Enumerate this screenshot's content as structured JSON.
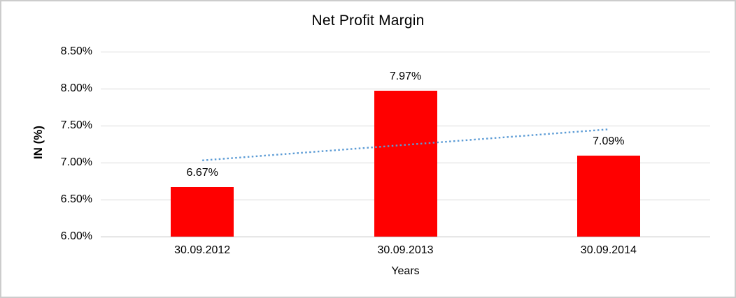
{
  "window": {
    "background": "#FFFFFF",
    "border_color": "#CCCCCC"
  },
  "chart_data": {
    "type": "bar",
    "title": "Net Profit Margin",
    "xlabel": "Years",
    "ylabel": "IN (%)",
    "categories": [
      "30.09.2012",
      "30.09.2013",
      "30.09.2014"
    ],
    "series": [
      {
        "name": "Net Profit Margin",
        "values": [
          6.67,
          7.97,
          7.09
        ],
        "data_labels": [
          "6.67%",
          "7.97%",
          "7.09%"
        ],
        "color": "#FF0000"
      }
    ],
    "ylim": [
      6.0,
      8.5
    ],
    "yticks": [
      {
        "value": 6.0,
        "label": "6.00%"
      },
      {
        "value": 6.5,
        "label": "6.50%"
      },
      {
        "value": 7.0,
        "label": "7.00%"
      },
      {
        "value": 7.5,
        "label": "7.50%"
      },
      {
        "value": 8.0,
        "label": "8.00%"
      },
      {
        "value": 8.5,
        "label": "8.50%"
      }
    ],
    "grid": true,
    "legend": "none",
    "trendline": {
      "type": "linear",
      "style": "dotted",
      "color": "#5B9BD5",
      "start_value": 7.03,
      "end_value": 7.45
    },
    "colors": {
      "gridline": "#D9D9D9",
      "axis_line": "#BFBFBF",
      "text": "#000000"
    }
  }
}
